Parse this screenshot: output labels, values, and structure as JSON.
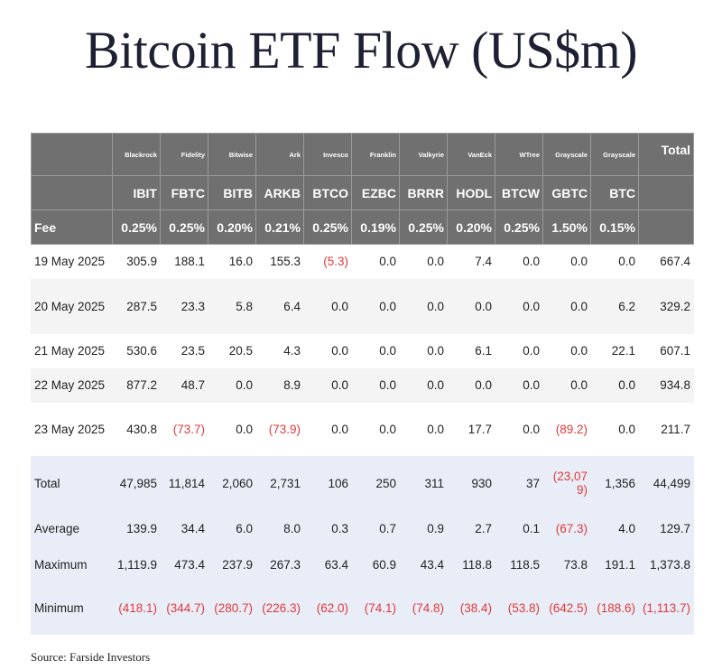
{
  "title": "Bitcoin ETF Flow (US$m)",
  "source": "Source: Farside Investors",
  "issuers": [
    "Blackrock",
    "Fidelity",
    "Bitwise",
    "Ark",
    "Invesco",
    "Franklin",
    "Valkyrie",
    "VanEck",
    "WTree",
    "Grayscale",
    "Grayscale"
  ],
  "total_header": "Total",
  "tickers": [
    "IBIT",
    "FBTC",
    "BITB",
    "ARKB",
    "BTCO",
    "EZBC",
    "BRRR",
    "HODL",
    "BTCW",
    "GBTC",
    "BTC"
  ],
  "fee_label": "Fee",
  "fees": [
    "0.25%",
    "0.25%",
    "0.20%",
    "0.21%",
    "0.25%",
    "0.19%",
    "0.25%",
    "0.20%",
    "0.25%",
    "1.50%",
    "0.15%"
  ],
  "days": [
    {
      "date": "19 May 2025",
      "values": [
        "305.9",
        "188.1",
        "16.0",
        "155.3",
        "(5.3)",
        "0.0",
        "0.0",
        "7.4",
        "0.0",
        "0.0",
        "0.0",
        "667.4"
      ]
    },
    {
      "date": "20 May 2025",
      "values": [
        "287.5",
        "23.3",
        "5.8",
        "6.4",
        "0.0",
        "0.0",
        "0.0",
        "0.0",
        "0.0",
        "0.0",
        "6.2",
        "329.2"
      ]
    },
    {
      "date": "21 May 2025",
      "values": [
        "530.6",
        "23.5",
        "20.5",
        "4.3",
        "0.0",
        "0.0",
        "0.0",
        "6.1",
        "0.0",
        "0.0",
        "22.1",
        "607.1"
      ]
    },
    {
      "date": "22 May 2025",
      "values": [
        "877.2",
        "48.7",
        "0.0",
        "8.9",
        "0.0",
        "0.0",
        "0.0",
        "0.0",
        "0.0",
        "0.0",
        "0.0",
        "934.8"
      ]
    },
    {
      "date": "23 May 2025",
      "values": [
        "430.8",
        "(73.7)",
        "0.0",
        "(73.9)",
        "0.0",
        "0.0",
        "0.0",
        "17.7",
        "0.0",
        "(89.2)",
        "0.0",
        "211.7"
      ]
    }
  ],
  "stats": [
    {
      "label": "Total",
      "values": [
        "47,985",
        "11,814",
        "2,060",
        "2,731",
        "106",
        "250",
        "311",
        "930",
        "37",
        "(23,079)",
        "1,356",
        "44,499"
      ]
    },
    {
      "label": "Average",
      "values": [
        "139.9",
        "34.4",
        "6.0",
        "8.0",
        "0.3",
        "0.7",
        "0.9",
        "2.7",
        "0.1",
        "(67.3)",
        "4.0",
        "129.7"
      ]
    },
    {
      "label": "Maximum",
      "values": [
        "1,119.9",
        "473.4",
        "237.9",
        "267.3",
        "63.4",
        "60.9",
        "43.4",
        "118.8",
        "118.5",
        "73.8",
        "191.1",
        "1,373.8"
      ]
    },
    {
      "label": "Minimum",
      "values": [
        "(418.1)",
        "(344.7)",
        "(280.7)",
        "(226.3)",
        "(62.0)",
        "(74.1)",
        "(74.8)",
        "(38.4)",
        "(53.8)",
        "(642.5)",
        "(188.6)",
        "(1,113.7)"
      ]
    }
  ],
  "colors": {
    "header_bg": "#707070",
    "stat_bg": "#e8edf7",
    "negative": "#e03a3a",
    "title": "#1f2033"
  }
}
